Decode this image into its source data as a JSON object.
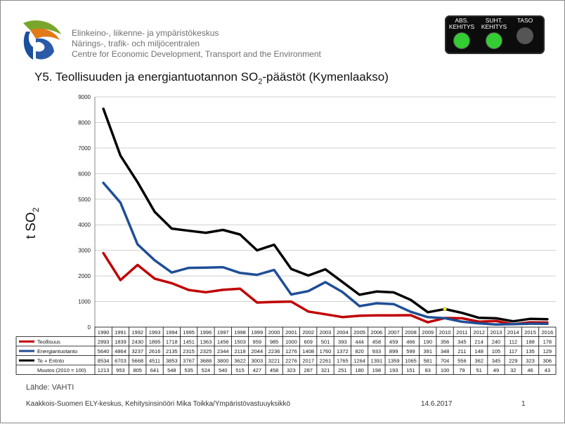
{
  "header": {
    "org_lines": [
      "Elinkeino-, liikenne- ja ympäristökeskus",
      "Närings-, trafik- och miljöcentralen",
      "Centre for Economic Development, Transport and the Environment"
    ],
    "indicators": [
      {
        "label_1": "ABS.",
        "label_2": "KEHITYS",
        "color": "#33cc33"
      },
      {
        "label_1": "SUHT.",
        "label_2": "KEHITYS",
        "color": "#33cc33"
      },
      {
        "label_1": "TASO",
        "label_2": "",
        "color": "#555555"
      }
    ]
  },
  "chart_data": {
    "type": "line",
    "title_main": "Y5. Teollisuuden ja energiantuotannon SO",
    "title_sub": "2",
    "title_tail": "-päästöt (Kymenlaakso)",
    "ylabel_main": "t SO",
    "ylabel_sub": "2",
    "ylim": [
      0,
      9000
    ],
    "yticks": [
      "0",
      "1000",
      "2000",
      "3000",
      "4000",
      "5000",
      "6000",
      "7000",
      "8000",
      "9000"
    ],
    "grid": true,
    "categories": [
      "1990",
      "1991",
      "1992",
      "1993",
      "1994",
      "1995",
      "1996",
      "1997",
      "1998",
      "1999",
      "2000",
      "2001",
      "2002",
      "2003",
      "2004",
      "2005",
      "2006",
      "2007",
      "2008",
      "2009",
      "2010",
      "2011",
      "2012",
      "2013",
      "2014",
      "2015",
      "2016"
    ],
    "series": [
      {
        "name": "Teollisuus",
        "color": "#c00000",
        "values": [
          2893,
          1839,
          2430,
          1895,
          1718,
          1451,
          1363,
          1456,
          1503,
          959,
          985,
          1000,
          609,
          501,
          393,
          444,
          458,
          459,
          466,
          190,
          356,
          345,
          214,
          240,
          112,
          188,
          178
        ]
      },
      {
        "name": "Energiantuotanto",
        "color": "#1f4e96",
        "values": [
          5640,
          4864,
          3237,
          2616,
          2135,
          2315,
          2325,
          2344,
          2118,
          2044,
          2236,
          1276,
          1408,
          1760,
          1372,
          820,
          933,
          899,
          599,
          391,
          348,
          211,
          148,
          105,
          117,
          135,
          129
        ]
      },
      {
        "name": "Te + Entnto",
        "color": "#000000",
        "values": [
          8534,
          6703,
          5668,
          4511,
          3853,
          3767,
          3688,
          3800,
          3622,
          3003,
          3221,
          2276,
          2017,
          2261,
          1765,
          1264,
          1391,
          1359,
          1065,
          581,
          704,
          556,
          362,
          345,
          229,
          323,
          306
        ]
      }
    ],
    "extra_row": {
      "name": "Muutos (2010 = 100)",
      "values": [
        1213,
        953,
        805,
        641,
        548,
        535,
        524,
        540,
        515,
        427,
        458,
        323,
        287,
        321,
        251,
        180,
        198,
        193,
        151,
        83,
        100,
        79,
        51,
        49,
        32,
        46,
        43
      ]
    },
    "marker": {
      "series": "Te + Entnto",
      "category": "2010",
      "color": "#ffff00"
    }
  },
  "footer": {
    "source": "Lähde: VAHTI",
    "author": "Kaakkois-Suomen ELY-keskus, Kehitysinsinööri Mika Toikka/Ympäristövastuuyksikkö",
    "date": "14.6.2017",
    "page": "1"
  }
}
